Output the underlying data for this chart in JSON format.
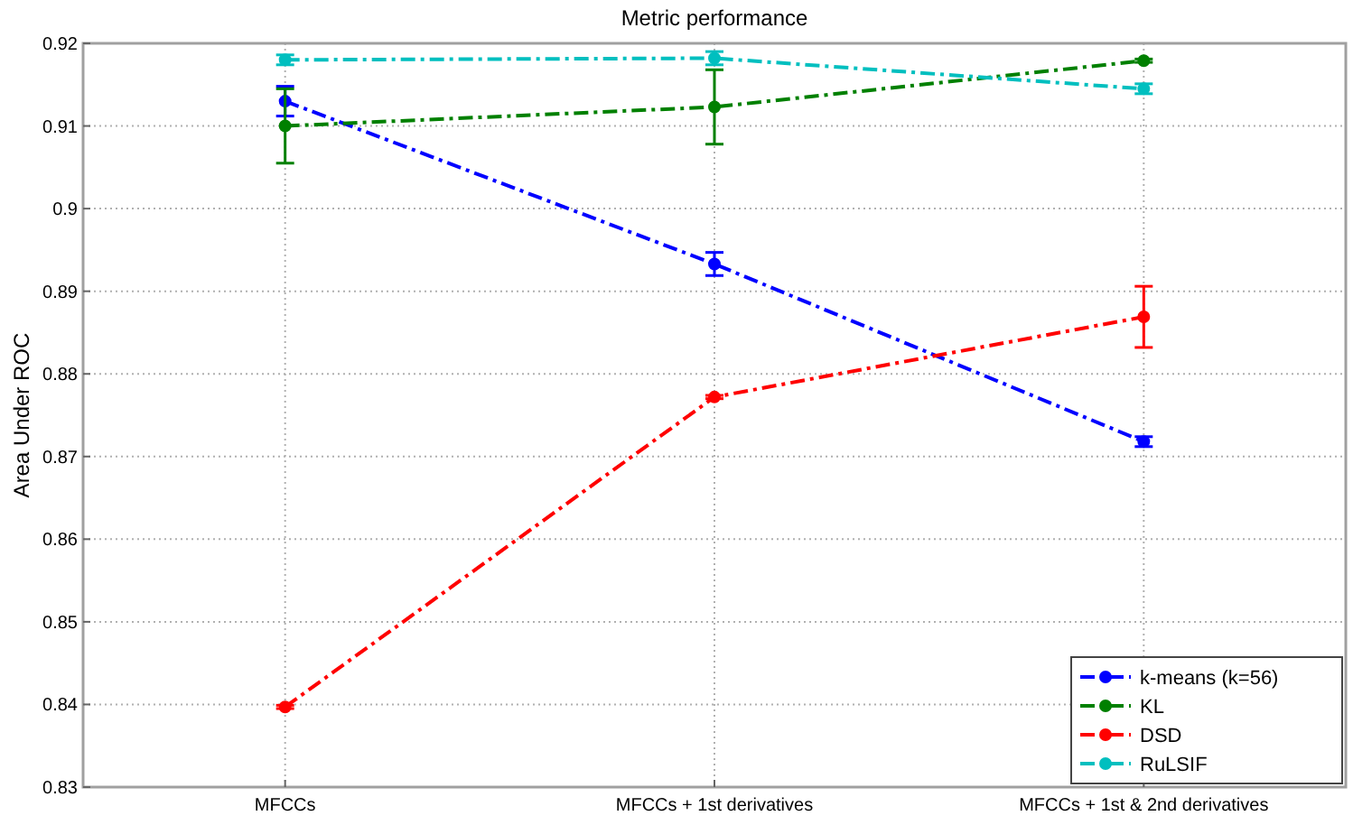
{
  "chart_data": {
    "type": "line",
    "title": "Metric performance",
    "ylabel": "Area Under ROC",
    "categories": [
      "MFCCs",
      "MFCCs + 1st derivatives",
      "MFCCs + 1st & 2nd derivatives"
    ],
    "series": [
      {
        "name": "k-means (k=56)",
        "color": "#0000ff",
        "values": [
          0.913,
          0.8933,
          0.8718
        ],
        "errors": [
          0.0018,
          0.0014,
          0.0006
        ]
      },
      {
        "name": "KL",
        "color": "#008000",
        "values": [
          0.91,
          0.9123,
          0.9179
        ],
        "errors": [
          0.0045,
          0.0045,
          0.0002
        ]
      },
      {
        "name": "DSD",
        "color": "#ff0000",
        "values": [
          0.8397,
          0.8772,
          0.8869
        ],
        "errors": [
          0.0002,
          0.0002,
          0.0037
        ]
      },
      {
        "name": "RuLSIF",
        "color": "#00bfbf",
        "values": [
          0.918,
          0.9182,
          0.9145
        ],
        "errors": [
          0.0006,
          0.0008,
          0.0006
        ]
      }
    ],
    "ylim": [
      0.83,
      0.92
    ],
    "yticks": [
      0.83,
      0.84,
      0.85,
      0.86,
      0.87,
      0.88,
      0.89,
      0.9,
      0.91,
      0.92
    ],
    "grid": true,
    "legend": "bottom right",
    "marker": "circle",
    "line_style": "dashed"
  }
}
